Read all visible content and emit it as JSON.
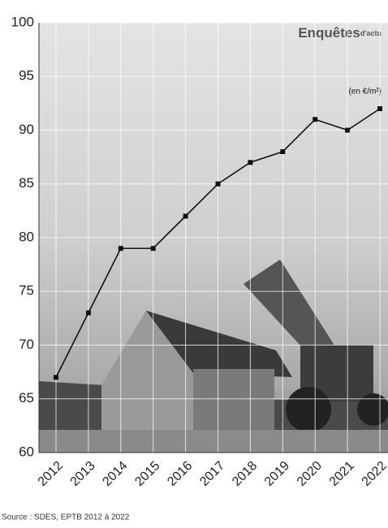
{
  "chart_data": {
    "type": "line",
    "brand": "Enquêtes",
    "brand_suffix": "d'actu",
    "unit": "(en €/m²)",
    "source": "Source : SDES, EPTB 2012 à 2022",
    "categories": [
      "2012",
      "2013",
      "2014",
      "2015",
      "2016",
      "2017",
      "2018",
      "2019",
      "2020",
      "2021",
      "2022"
    ],
    "series": [
      {
        "color": "#111111",
        "values": [
          67,
          73,
          79,
          79,
          82,
          85,
          87,
          88,
          91,
          90,
          92
        ]
      }
    ],
    "ylim": [
      60,
      100
    ],
    "yticks": [
      60,
      65,
      70,
      75,
      80,
      85,
      90,
      95,
      100
    ],
    "grid": true
  }
}
